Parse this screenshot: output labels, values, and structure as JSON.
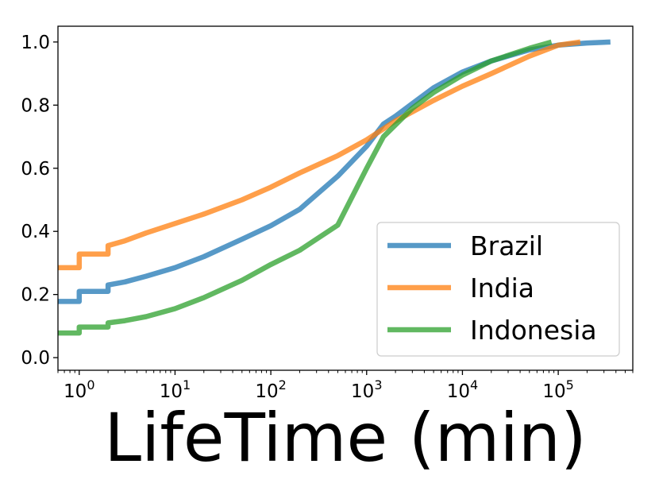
{
  "chart_data": {
    "type": "line",
    "title": "",
    "xlabel": "LifeTime (min)",
    "ylabel": "",
    "x_scale": "log",
    "xlim": [
      0.6,
      600000
    ],
    "ylim": [
      -0.04,
      1.05
    ],
    "x_ticks": [
      {
        "value": 1,
        "base": "10",
        "exp": "0"
      },
      {
        "value": 10,
        "base": "10",
        "exp": "1"
      },
      {
        "value": 100,
        "base": "10",
        "exp": "2"
      },
      {
        "value": 1000,
        "base": "10",
        "exp": "3"
      },
      {
        "value": 10000,
        "base": "10",
        "exp": "4"
      },
      {
        "value": 100000,
        "base": "10",
        "exp": "5"
      }
    ],
    "y_ticks": [
      {
        "value": 0.0,
        "label": "0.0"
      },
      {
        "value": 0.2,
        "label": "0.2"
      },
      {
        "value": 0.4,
        "label": "0.4"
      },
      {
        "value": 0.6,
        "label": "0.6"
      },
      {
        "value": 0.8,
        "label": "0.8"
      },
      {
        "value": 1.0,
        "label": "1.0"
      }
    ],
    "grid": false,
    "legend_position": "lower-right",
    "series": [
      {
        "name": "Brazil",
        "color": "#1f77b4",
        "points": [
          [
            0.6,
            0.178
          ],
          [
            1,
            0.178
          ],
          [
            1,
            0.21
          ],
          [
            2,
            0.21
          ],
          [
            2,
            0.23
          ],
          [
            3,
            0.24
          ],
          [
            5,
            0.258
          ],
          [
            10,
            0.285
          ],
          [
            20,
            0.32
          ],
          [
            50,
            0.375
          ],
          [
            100,
            0.418
          ],
          [
            200,
            0.47
          ],
          [
            500,
            0.575
          ],
          [
            1000,
            0.67
          ],
          [
            1500,
            0.74
          ],
          [
            2000,
            0.765
          ],
          [
            3000,
            0.805
          ],
          [
            5000,
            0.855
          ],
          [
            10000,
            0.905
          ],
          [
            20000,
            0.94
          ],
          [
            50000,
            0.975
          ],
          [
            100000,
            0.99
          ],
          [
            200000,
            0.997
          ],
          [
            350000,
            1.0
          ]
        ]
      },
      {
        "name": "India",
        "color": "#ff7f0e",
        "points": [
          [
            0.6,
            0.285
          ],
          [
            1,
            0.285
          ],
          [
            1,
            0.328
          ],
          [
            2,
            0.328
          ],
          [
            2,
            0.355
          ],
          [
            3,
            0.37
          ],
          [
            5,
            0.395
          ],
          [
            10,
            0.425
          ],
          [
            20,
            0.455
          ],
          [
            50,
            0.5
          ],
          [
            100,
            0.54
          ],
          [
            200,
            0.585
          ],
          [
            500,
            0.64
          ],
          [
            1000,
            0.69
          ],
          [
            2000,
            0.75
          ],
          [
            5000,
            0.815
          ],
          [
            10000,
            0.86
          ],
          [
            20000,
            0.9
          ],
          [
            50000,
            0.955
          ],
          [
            100000,
            0.99
          ],
          [
            170000,
            1.0
          ]
        ]
      },
      {
        "name": "Indonesia",
        "color": "#2ca02c",
        "points": [
          [
            0.6,
            0.078
          ],
          [
            1,
            0.078
          ],
          [
            1,
            0.097
          ],
          [
            2,
            0.097
          ],
          [
            2,
            0.11
          ],
          [
            3,
            0.117
          ],
          [
            5,
            0.13
          ],
          [
            10,
            0.155
          ],
          [
            20,
            0.19
          ],
          [
            50,
            0.245
          ],
          [
            100,
            0.295
          ],
          [
            200,
            0.34
          ],
          [
            500,
            0.42
          ],
          [
            1000,
            0.6
          ],
          [
            1500,
            0.7
          ],
          [
            3000,
            0.79
          ],
          [
            5000,
            0.84
          ],
          [
            10000,
            0.895
          ],
          [
            20000,
            0.94
          ],
          [
            50000,
            0.98
          ],
          [
            85000,
            1.0
          ]
        ]
      }
    ]
  }
}
